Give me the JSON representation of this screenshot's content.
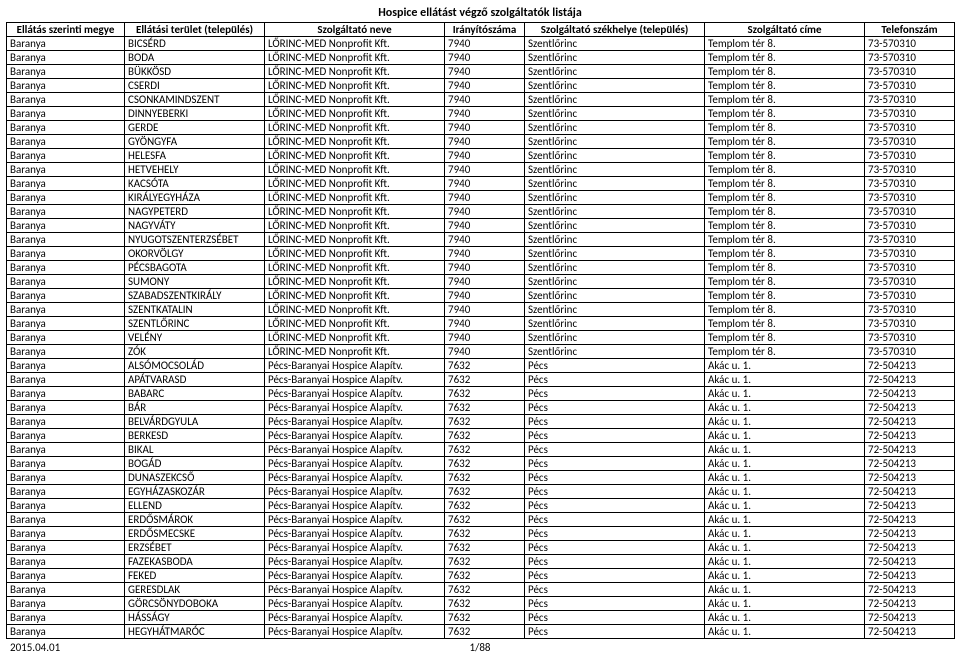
{
  "title": "Hospice ellátást végző szolgáltatók listája",
  "columns": [
    "Ellátás szerinti megye",
    "Ellátási terület (település)",
    "Szolgáltató neve",
    "Irányítószáma",
    "Szolgáltató székhelye (település)",
    "Szolgáltató címe",
    "Telefonszám"
  ],
  "rows": [
    [
      "Baranya",
      "BICSÉRD",
      "LŐRINC-MED Nonprofit Kft.",
      "7940",
      "Szentlőrinc",
      "Templom tér 8.",
      "73-570310"
    ],
    [
      "Baranya",
      "BODA",
      "LŐRINC-MED Nonprofit Kft.",
      "7940",
      "Szentlőrinc",
      "Templom tér 8.",
      "73-570310"
    ],
    [
      "Baranya",
      "BÜKKÖSD",
      "LŐRINC-MED Nonprofit Kft.",
      "7940",
      "Szentlőrinc",
      "Templom tér 8.",
      "73-570310"
    ],
    [
      "Baranya",
      "CSERDI",
      "LŐRINC-MED Nonprofit Kft.",
      "7940",
      "Szentlőrinc",
      "Templom tér 8.",
      "73-570310"
    ],
    [
      "Baranya",
      "CSONKAMINDSZENT",
      "LŐRINC-MED Nonprofit Kft.",
      "7940",
      "Szentlőrinc",
      "Templom tér 8.",
      "73-570310"
    ],
    [
      "Baranya",
      "DINNYEBERKI",
      "LŐRINC-MED Nonprofit Kft.",
      "7940",
      "Szentlőrinc",
      "Templom tér 8.",
      "73-570310"
    ],
    [
      "Baranya",
      "GERDE",
      "LŐRINC-MED Nonprofit Kft.",
      "7940",
      "Szentlőrinc",
      "Templom tér 8.",
      "73-570310"
    ],
    [
      "Baranya",
      "GYÖNGYFA",
      "LŐRINC-MED Nonprofit Kft.",
      "7940",
      "Szentlőrinc",
      "Templom tér 8.",
      "73-570310"
    ],
    [
      "Baranya",
      "HELESFA",
      "LŐRINC-MED Nonprofit Kft.",
      "7940",
      "Szentlőrinc",
      "Templom tér 8.",
      "73-570310"
    ],
    [
      "Baranya",
      "HETVEHELY",
      "LŐRINC-MED Nonprofit Kft.",
      "7940",
      "Szentlőrinc",
      "Templom tér 8.",
      "73-570310"
    ],
    [
      "Baranya",
      "KACSÓTA",
      "LŐRINC-MED Nonprofit Kft.",
      "7940",
      "Szentlőrinc",
      "Templom tér 8.",
      "73-570310"
    ],
    [
      "Baranya",
      "KIRÁLYEGYHÁZA",
      "LŐRINC-MED Nonprofit Kft.",
      "7940",
      "Szentlőrinc",
      "Templom tér 8.",
      "73-570310"
    ],
    [
      "Baranya",
      "NAGYPETERD",
      "LŐRINC-MED Nonprofit Kft.",
      "7940",
      "Szentlőrinc",
      "Templom tér 8.",
      "73-570310"
    ],
    [
      "Baranya",
      "NAGYVÁTY",
      "LŐRINC-MED Nonprofit Kft.",
      "7940",
      "Szentlőrinc",
      "Templom tér 8.",
      "73-570310"
    ],
    [
      "Baranya",
      "NYUGOTSZENTERZSÉBET",
      "LŐRINC-MED Nonprofit Kft.",
      "7940",
      "Szentlőrinc",
      "Templom tér 8.",
      "73-570310"
    ],
    [
      "Baranya",
      "OKORVÖLGY",
      "LŐRINC-MED Nonprofit Kft.",
      "7940",
      "Szentlőrinc",
      "Templom tér 8.",
      "73-570310"
    ],
    [
      "Baranya",
      "PÉCSBAGOTA",
      "LŐRINC-MED Nonprofit Kft.",
      "7940",
      "Szentlőrinc",
      "Templom tér 8.",
      "73-570310"
    ],
    [
      "Baranya",
      "SUMONY",
      "LŐRINC-MED Nonprofit Kft.",
      "7940",
      "Szentlőrinc",
      "Templom tér 8.",
      "73-570310"
    ],
    [
      "Baranya",
      "SZABADSZENTKIRÁLY",
      "LŐRINC-MED Nonprofit Kft.",
      "7940",
      "Szentlőrinc",
      "Templom tér 8.",
      "73-570310"
    ],
    [
      "Baranya",
      "SZENTKATALIN",
      "LŐRINC-MED Nonprofit Kft.",
      "7940",
      "Szentlőrinc",
      "Templom tér 8.",
      "73-570310"
    ],
    [
      "Baranya",
      "SZENTLŐRINC",
      "LŐRINC-MED Nonprofit Kft.",
      "7940",
      "Szentlőrinc",
      "Templom tér 8.",
      "73-570310"
    ],
    [
      "Baranya",
      "VELÉNY",
      "LŐRINC-MED Nonprofit Kft.",
      "7940",
      "Szentlőrinc",
      "Templom tér 8.",
      "73-570310"
    ],
    [
      "Baranya",
      "ZÓK",
      "LŐRINC-MED Nonprofit Kft.",
      "7940",
      "Szentlőrinc",
      "Templom tér 8.",
      "73-570310"
    ],
    [
      "Baranya",
      "ALSÓMOCSOLÁD",
      "Pécs-Baranyai Hospice Alapítv.",
      "7632",
      "Pécs",
      "Akác u. 1.",
      "72-504213"
    ],
    [
      "Baranya",
      "APÁTVARASD",
      "Pécs-Baranyai Hospice Alapítv.",
      "7632",
      "Pécs",
      "Akác u. 1.",
      "72-504213"
    ],
    [
      "Baranya",
      "BABARC",
      "Pécs-Baranyai Hospice Alapítv.",
      "7632",
      "Pécs",
      "Akác u. 1.",
      "72-504213"
    ],
    [
      "Baranya",
      "BÁR",
      "Pécs-Baranyai Hospice Alapítv.",
      "7632",
      "Pécs",
      "Akác u. 1.",
      "72-504213"
    ],
    [
      "Baranya",
      "BELVÁRDGYULA",
      "Pécs-Baranyai Hospice Alapítv.",
      "7632",
      "Pécs",
      "Akác u. 1.",
      "72-504213"
    ],
    [
      "Baranya",
      "BERKESD",
      "Pécs-Baranyai Hospice Alapítv.",
      "7632",
      "Pécs",
      "Akác u. 1.",
      "72-504213"
    ],
    [
      "Baranya",
      "BIKAL",
      "Pécs-Baranyai Hospice Alapítv.",
      "7632",
      "Pécs",
      "Akác u. 1.",
      "72-504213"
    ],
    [
      "Baranya",
      "BOGÁD",
      "Pécs-Baranyai Hospice Alapítv.",
      "7632",
      "Pécs",
      "Akác u. 1.",
      "72-504213"
    ],
    [
      "Baranya",
      "DUNASZEKCSŐ",
      "Pécs-Baranyai Hospice Alapítv.",
      "7632",
      "Pécs",
      "Akác u. 1.",
      "72-504213"
    ],
    [
      "Baranya",
      "EGYHÁZASKOZÁR",
      "Pécs-Baranyai Hospice Alapítv.",
      "7632",
      "Pécs",
      "Akác u. 1.",
      "72-504213"
    ],
    [
      "Baranya",
      "ELLEND",
      "Pécs-Baranyai Hospice Alapítv.",
      "7632",
      "Pécs",
      "Akác u. 1.",
      "72-504213"
    ],
    [
      "Baranya",
      "ERDŐSMÁROK",
      "Pécs-Baranyai Hospice Alapítv.",
      "7632",
      "Pécs",
      "Akác u. 1.",
      "72-504213"
    ],
    [
      "Baranya",
      "ERDŐSMECSKE",
      "Pécs-Baranyai Hospice Alapítv.",
      "7632",
      "Pécs",
      "Akác u. 1.",
      "72-504213"
    ],
    [
      "Baranya",
      "ERZSÉBET",
      "Pécs-Baranyai Hospice Alapítv.",
      "7632",
      "Pécs",
      "Akác u. 1.",
      "72-504213"
    ],
    [
      "Baranya",
      "FAZEKASBODA",
      "Pécs-Baranyai Hospice Alapítv.",
      "7632",
      "Pécs",
      "Akác u. 1.",
      "72-504213"
    ],
    [
      "Baranya",
      "FEKED",
      "Pécs-Baranyai Hospice Alapítv.",
      "7632",
      "Pécs",
      "Akác u. 1.",
      "72-504213"
    ],
    [
      "Baranya",
      "GERESDLAK",
      "Pécs-Baranyai Hospice Alapítv.",
      "7632",
      "Pécs",
      "Akác u. 1.",
      "72-504213"
    ],
    [
      "Baranya",
      "GÖRCSÖNYDOBOKA",
      "Pécs-Baranyai Hospice Alapítv.",
      "7632",
      "Pécs",
      "Akác u. 1.",
      "72-504213"
    ],
    [
      "Baranya",
      "HÁSSÁGY",
      "Pécs-Baranyai Hospice Alapítv.",
      "7632",
      "Pécs",
      "Akác u. 1.",
      "72-504213"
    ],
    [
      "Baranya",
      "HEGYHÁTMARÓC",
      "Pécs-Baranyai Hospice Alapítv.",
      "7632",
      "Pécs",
      "Akác u. 1.",
      "72-504213"
    ]
  ],
  "footer_date": "2015.04.01",
  "page_number": "1/88"
}
